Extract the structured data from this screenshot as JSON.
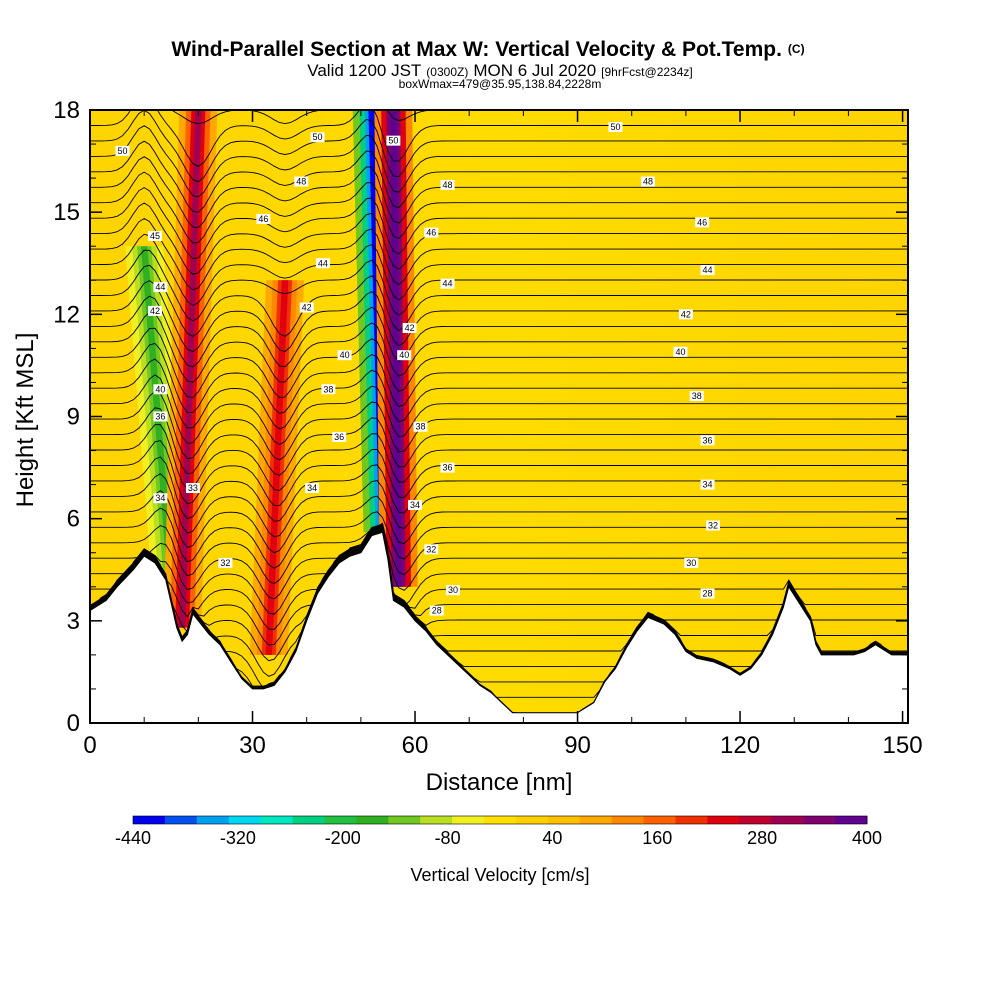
{
  "chart_data": {
    "type": "heatmap",
    "title": "Wind-Parallel Section at Max W: Vertical Velocity & Pot.Temp.",
    "title_mark": "(C)",
    "subtitle_parts": [
      "Valid 1200 JST",
      "(0300Z)",
      "MON 6 Jul 2020",
      "[9hrFcst@2234z]"
    ],
    "subtitle2": "boxWmax=479@35.95,138.84,2228m",
    "xlabel": "Distance [nm]",
    "ylabel": "Height [Kft MSL]",
    "xlim": [
      0,
      151
    ],
    "ylim": [
      0,
      18
    ],
    "xticks": [
      "0",
      "30",
      "60",
      "90",
      "120",
      "150"
    ],
    "xtick_values": [
      0,
      30,
      60,
      90,
      120,
      150
    ],
    "yticks": [
      "0",
      "3",
      "6",
      "9",
      "12",
      "15",
      "18"
    ],
    "ytick_values": [
      0,
      3,
      6,
      9,
      12,
      15,
      18
    ],
    "colorbar": {
      "label": "Vertical Velocity [cm/s]",
      "range": [
        -440,
        400
      ],
      "ticks": [
        "-440",
        "-320",
        "-200",
        "-80",
        "40",
        "160",
        "280",
        "400"
      ],
      "colors": [
        "#0000f0",
        "#0050f0",
        "#00a0f0",
        "#00d8f0",
        "#00e8c0",
        "#00d080",
        "#20c040",
        "#30b020",
        "#70c820",
        "#b8e020",
        "#f0f020",
        "#ffe000",
        "#ffd000",
        "#ffc000",
        "#ffa800",
        "#ff8800",
        "#ff6000",
        "#f03000",
        "#e00010",
        "#c00030",
        "#a00050",
        "#800070",
        "#600090"
      ]
    },
    "terrain_kft": [
      [
        0,
        3.3
      ],
      [
        3,
        3.6
      ],
      [
        5,
        4.0
      ],
      [
        8,
        4.5
      ],
      [
        10,
        4.9
      ],
      [
        12,
        4.7
      ],
      [
        14,
        4.2
      ],
      [
        15,
        3.5
      ],
      [
        16,
        2.8
      ],
      [
        17,
        2.4
      ],
      [
        18,
        2.6
      ],
      [
        19,
        3.2
      ],
      [
        20,
        3.0
      ],
      [
        22,
        2.6
      ],
      [
        24,
        2.3
      ],
      [
        26,
        1.8
      ],
      [
        28,
        1.3
      ],
      [
        30,
        1.0
      ],
      [
        32,
        1.0
      ],
      [
        34,
        1.1
      ],
      [
        36,
        1.5
      ],
      [
        38,
        2.1
      ],
      [
        40,
        3.0
      ],
      [
        42,
        3.8
      ],
      [
        44,
        4.3
      ],
      [
        46,
        4.7
      ],
      [
        48,
        4.9
      ],
      [
        50,
        5.0
      ],
      [
        52,
        5.5
      ],
      [
        54,
        5.6
      ],
      [
        55,
        4.8
      ],
      [
        56,
        3.6
      ],
      [
        58,
        3.4
      ],
      [
        60,
        3.0
      ],
      [
        62,
        2.7
      ],
      [
        64,
        2.3
      ],
      [
        66,
        2.0
      ],
      [
        68,
        1.7
      ],
      [
        70,
        1.4
      ],
      [
        72,
        1.1
      ],
      [
        74,
        0.9
      ],
      [
        76,
        0.6
      ],
      [
        78,
        0.3
      ],
      [
        82,
        0.3
      ],
      [
        86,
        0.3
      ],
      [
        90,
        0.3
      ],
      [
        93,
        0.6
      ],
      [
        95,
        1.2
      ],
      [
        97,
        1.6
      ],
      [
        99,
        2.2
      ],
      [
        101,
        2.7
      ],
      [
        103,
        3.1
      ],
      [
        106,
        2.9
      ],
      [
        108,
        2.6
      ],
      [
        110,
        2.1
      ],
      [
        112,
        1.9
      ],
      [
        115,
        1.8
      ],
      [
        118,
        1.6
      ],
      [
        120,
        1.4
      ],
      [
        122,
        1.6
      ],
      [
        124,
        2.0
      ],
      [
        126,
        2.6
      ],
      [
        128,
        3.4
      ],
      [
        129,
        4.0
      ],
      [
        131,
        3.5
      ],
      [
        133,
        3.0
      ],
      [
        134,
        2.3
      ],
      [
        135,
        2.0
      ],
      [
        138,
        2.0
      ],
      [
        141,
        2.0
      ],
      [
        143,
        2.1
      ],
      [
        145,
        2.3
      ],
      [
        148,
        2.0
      ],
      [
        151,
        2.0
      ]
    ],
    "updraft_bands": [
      {
        "w": 300,
        "bottom": [
          17,
          2.8
        ],
        "top": [
          20,
          18
        ]
      },
      {
        "w": 250,
        "bottom": [
          33,
          2.0
        ],
        "top": [
          36,
          13
        ]
      },
      {
        "w": 420,
        "bottom": [
          57,
          4.0
        ],
        "top": [
          56,
          18
        ]
      }
    ],
    "downdraft_bands": [
      {
        "w": -180,
        "bottom": [
          15,
          4.0
        ],
        "top": [
          10,
          14
        ]
      },
      {
        "w": -420,
        "bottom": [
          54,
          5.6
        ],
        "top": [
          52,
          18
        ]
      }
    ],
    "theta_contours_C": [
      "28",
      "30",
      "32",
      "34",
      "36",
      "38",
      "40",
      "42",
      "44",
      "46",
      "48",
      "50"
    ],
    "contour_labels": [
      {
        "text": "50",
        "x": 6,
        "y": 16.8
      },
      {
        "text": "50",
        "x": 42,
        "y": 17.2
      },
      {
        "text": "50",
        "x": 56,
        "y": 17.1
      },
      {
        "text": "50",
        "x": 97,
        "y": 17.5
      },
      {
        "text": "48",
        "x": 39,
        "y": 15.9
      },
      {
        "text": "48",
        "x": 66,
        "y": 15.8
      },
      {
        "text": "48",
        "x": 103,
        "y": 15.9
      },
      {
        "text": "46",
        "x": 32,
        "y": 14.8
      },
      {
        "text": "46",
        "x": 63,
        "y": 14.4
      },
      {
        "text": "46",
        "x": 113,
        "y": 14.7
      },
      {
        "text": "45",
        "x": 12,
        "y": 14.3
      },
      {
        "text": "44",
        "x": 43,
        "y": 13.5
      },
      {
        "text": "44",
        "x": 66,
        "y": 12.9
      },
      {
        "text": "44",
        "x": 114,
        "y": 13.3
      },
      {
        "text": "44",
        "x": 13,
        "y": 12.8
      },
      {
        "text": "42",
        "x": 12,
        "y": 12.1
      },
      {
        "text": "42",
        "x": 40,
        "y": 12.2
      },
      {
        "text": "42",
        "x": 59,
        "y": 11.6
      },
      {
        "text": "42",
        "x": 110,
        "y": 12.0
      },
      {
        "text": "40",
        "x": 13,
        "y": 9.8
      },
      {
        "text": "40",
        "x": 47,
        "y": 10.8
      },
      {
        "text": "40",
        "x": 58,
        "y": 10.8
      },
      {
        "text": "40",
        "x": 109,
        "y": 10.9
      },
      {
        "text": "38",
        "x": 44,
        "y": 9.8
      },
      {
        "text": "38",
        "x": 61,
        "y": 8.7
      },
      {
        "text": "38",
        "x": 112,
        "y": 9.6
      },
      {
        "text": "36",
        "x": 13,
        "y": 9.0
      },
      {
        "text": "36",
        "x": 46,
        "y": 8.4
      },
      {
        "text": "36",
        "x": 66,
        "y": 7.5
      },
      {
        "text": "36",
        "x": 114,
        "y": 8.3
      },
      {
        "text": "34",
        "x": 13,
        "y": 6.6
      },
      {
        "text": "34",
        "x": 41,
        "y": 6.9
      },
      {
        "text": "34",
        "x": 60,
        "y": 6.4
      },
      {
        "text": "34",
        "x": 114,
        "y": 7.0
      },
      {
        "text": "33",
        "x": 19,
        "y": 6.9
      },
      {
        "text": "32",
        "x": 25,
        "y": 4.7
      },
      {
        "text": "32",
        "x": 63,
        "y": 5.1
      },
      {
        "text": "32",
        "x": 115,
        "y": 5.8
      },
      {
        "text": "30",
        "x": 67,
        "y": 3.9
      },
      {
        "text": "30",
        "x": 111,
        "y": 4.7
      },
      {
        "text": "28",
        "x": 64,
        "y": 3.3
      },
      {
        "text": "28",
        "x": 114,
        "y": 3.8
      }
    ]
  }
}
